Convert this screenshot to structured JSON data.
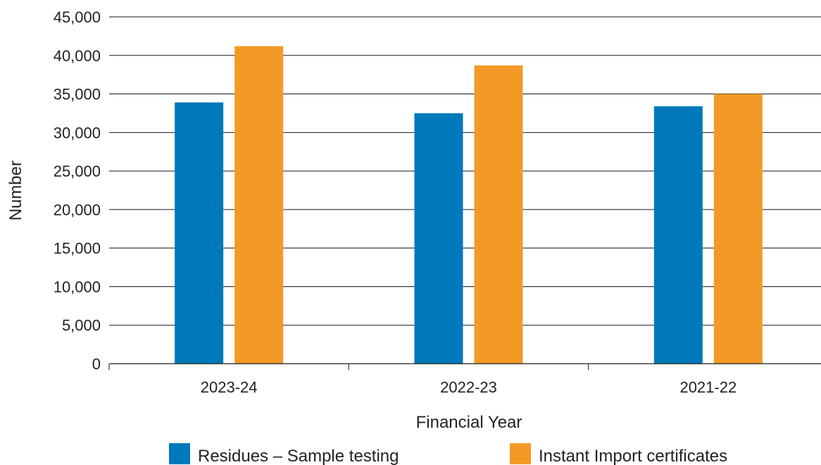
{
  "chart_data": {
    "type": "bar",
    "title": "",
    "xlabel": "Financial Year",
    "ylabel": "Number",
    "categories": [
      "2023-24",
      "2022-23",
      "2021-22"
    ],
    "series": [
      {
        "name": "Residues – Sample testing",
        "color": "#0079BA",
        "values": [
          33900,
          32500,
          33400
        ]
      },
      {
        "name": "Instant Import certificates",
        "color": "#F39A26",
        "values": [
          41200,
          38700,
          35000
        ]
      }
    ],
    "ylim": [
      0,
      45000
    ],
    "yticks": [
      "0",
      "5,000",
      "10,000",
      "15,000",
      "20,000",
      "25,000",
      "30,000",
      "35,000",
      "40,000",
      "45,000"
    ],
    "ytick_values": [
      0,
      5000,
      10000,
      15000,
      20000,
      25000,
      30000,
      35000,
      40000,
      45000
    ],
    "grid": true,
    "legend_position": "bottom"
  }
}
